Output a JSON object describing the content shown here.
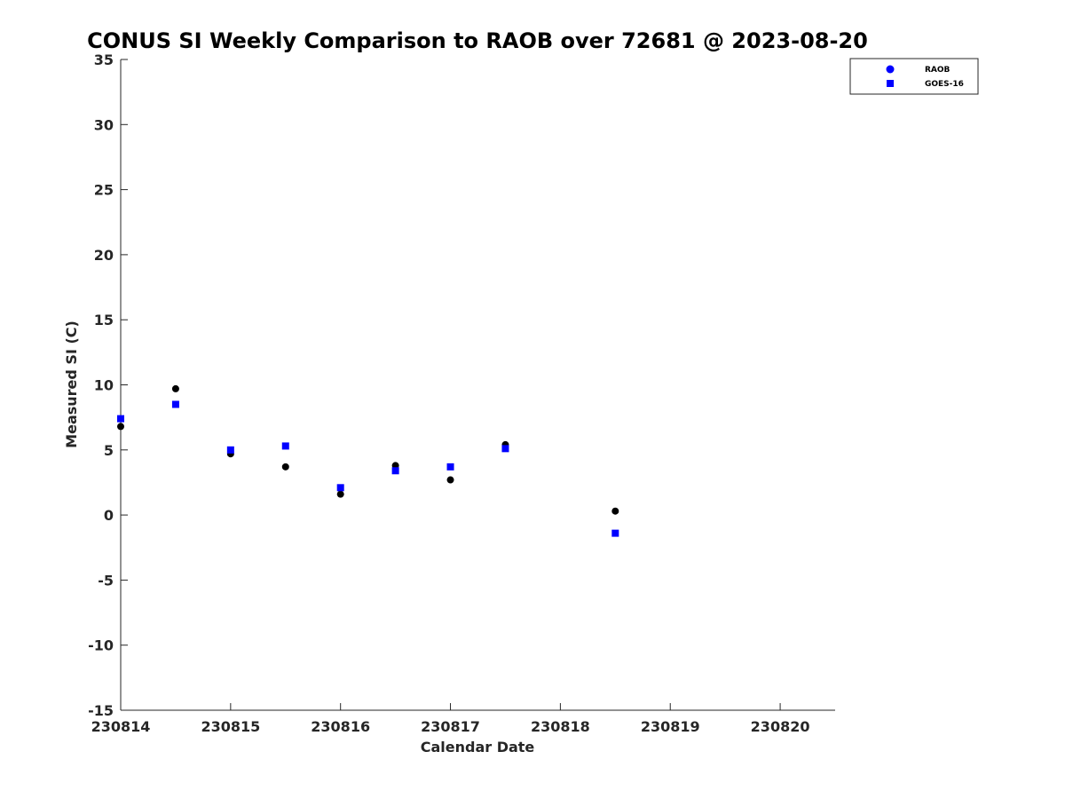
{
  "chart_data": {
    "type": "scatter",
    "title": "CONUS SI Weekly Comparison to RAOB over 72681 @ 2023-08-20",
    "xlabel": "Calendar Date",
    "ylabel": "Measured SI (C)",
    "xlim": [
      "2023-08-14",
      "2023-08-20 12:00"
    ],
    "ylim": [
      -15,
      35
    ],
    "x_ticks": [
      {
        "x": "2023-08-14",
        "label": "230814"
      },
      {
        "x": "2023-08-15",
        "label": "230815"
      },
      {
        "x": "2023-08-16",
        "label": "230816"
      },
      {
        "x": "2023-08-17",
        "label": "230817"
      },
      {
        "x": "2023-08-18",
        "label": "230818"
      },
      {
        "x": "2023-08-19",
        "label": "230819"
      },
      {
        "x": "2023-08-20",
        "label": "230820"
      }
    ],
    "y_ticks": [
      35,
      30,
      25,
      20,
      15,
      10,
      5,
      0,
      -5,
      -10,
      -15
    ],
    "grid": false,
    "legend_position": "top-right",
    "series": [
      {
        "name": "RAOB",
        "marker": "circle",
        "color": "#000000",
        "legend_color": "#0000ff",
        "points": [
          {
            "x": "2023-08-14 00:00",
            "y": 6.8
          },
          {
            "x": "2023-08-14 12:00",
            "y": 9.7
          },
          {
            "x": "2023-08-15 00:00",
            "y": 4.7
          },
          {
            "x": "2023-08-15 12:00",
            "y": 3.7
          },
          {
            "x": "2023-08-16 00:00",
            "y": 1.6
          },
          {
            "x": "2023-08-16 12:00",
            "y": 3.8
          },
          {
            "x": "2023-08-17 00:00",
            "y": 2.7
          },
          {
            "x": "2023-08-17 12:00",
            "y": 5.4
          },
          {
            "x": "2023-08-18 12:00",
            "y": 0.3
          }
        ]
      },
      {
        "name": "GOES-16",
        "marker": "square",
        "color": "#0000ff",
        "legend_color": "#0000ff",
        "points": [
          {
            "x": "2023-08-14 00:00",
            "y": 7.4
          },
          {
            "x": "2023-08-14 12:00",
            "y": 8.5
          },
          {
            "x": "2023-08-15 00:00",
            "y": 5.0
          },
          {
            "x": "2023-08-15 12:00",
            "y": 5.3
          },
          {
            "x": "2023-08-16 00:00",
            "y": 2.1
          },
          {
            "x": "2023-08-16 12:00",
            "y": 3.4
          },
          {
            "x": "2023-08-17 00:00",
            "y": 3.7
          },
          {
            "x": "2023-08-17 12:00",
            "y": 5.1
          },
          {
            "x": "2023-08-18 12:00",
            "y": -1.4
          }
        ]
      }
    ]
  }
}
